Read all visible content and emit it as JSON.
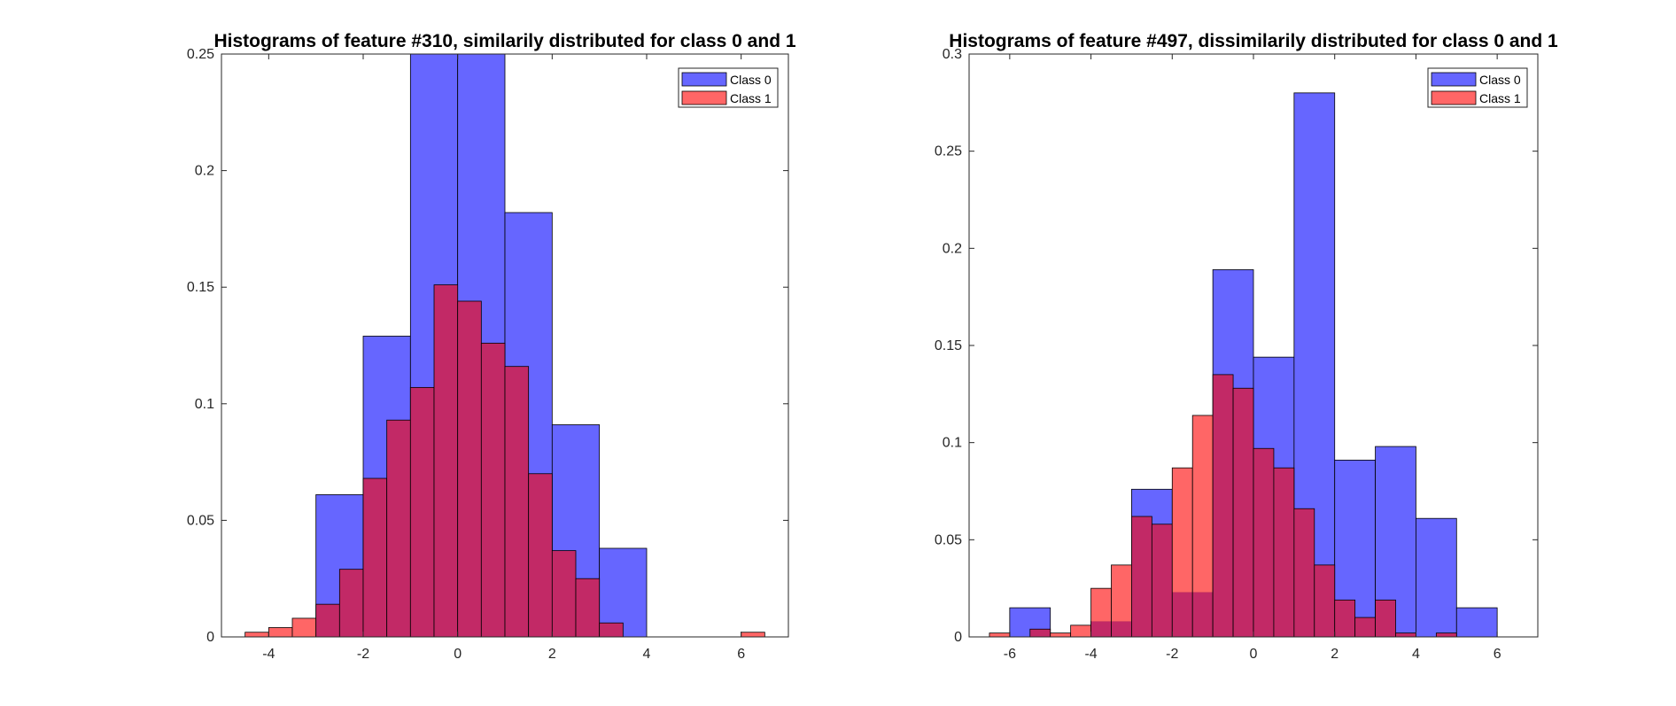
{
  "chart_data": [
    {
      "type": "bar",
      "subtype": "histogram-overlay",
      "title": "Histograms of feature #310, similarily distributed for class 0 and 1",
      "xlabel": "",
      "ylabel": "",
      "xlim": [
        -5,
        7
      ],
      "ylim": [
        0,
        0.25
      ],
      "xticks": [
        -4,
        -2,
        0,
        2,
        4,
        6
      ],
      "yticks": [
        0,
        0.05,
        0.1,
        0.15,
        0.2,
        0.25
      ],
      "ytick_labels": [
        "0",
        "0.05",
        "0.1",
        "0.15",
        "0.2",
        "0.25"
      ],
      "grid": false,
      "legend_position": "top-right",
      "series": [
        {
          "name": "Class 0",
          "color": "#0000ff",
          "bins": [
            {
              "x0": -3.0,
              "x1": -2.0,
              "value": 0.061
            },
            {
              "x0": -2.0,
              "x1": -1.0,
              "value": 0.129
            },
            {
              "x0": -1.0,
              "x1": 0.0,
              "value": 0.25
            },
            {
              "x0": 0.0,
              "x1": 1.0,
              "value": 0.25
            },
            {
              "x0": 1.0,
              "x1": 2.0,
              "value": 0.182
            },
            {
              "x0": 2.0,
              "x1": 3.0,
              "value": 0.091
            },
            {
              "x0": 3.0,
              "x1": 4.0,
              "value": 0.038
            }
          ]
        },
        {
          "name": "Class 1",
          "color": "#ff0000",
          "bins": [
            {
              "x0": -4.5,
              "x1": -4.0,
              "value": 0.002
            },
            {
              "x0": -4.0,
              "x1": -3.5,
              "value": 0.004
            },
            {
              "x0": -3.5,
              "x1": -3.0,
              "value": 0.008
            },
            {
              "x0": -3.0,
              "x1": -2.5,
              "value": 0.014
            },
            {
              "x0": -2.5,
              "x1": -2.0,
              "value": 0.029
            },
            {
              "x0": -2.0,
              "x1": -1.5,
              "value": 0.068
            },
            {
              "x0": -1.5,
              "x1": -1.0,
              "value": 0.093
            },
            {
              "x0": -1.0,
              "x1": -0.5,
              "value": 0.107
            },
            {
              "x0": -0.5,
              "x1": 0.0,
              "value": 0.151
            },
            {
              "x0": 0.0,
              "x1": 0.5,
              "value": 0.144
            },
            {
              "x0": 0.5,
              "x1": 1.0,
              "value": 0.126
            },
            {
              "x0": 1.0,
              "x1": 1.5,
              "value": 0.116
            },
            {
              "x0": 1.5,
              "x1": 2.0,
              "value": 0.07
            },
            {
              "x0": 2.0,
              "x1": 2.5,
              "value": 0.037
            },
            {
              "x0": 2.5,
              "x1": 3.0,
              "value": 0.025
            },
            {
              "x0": 3.0,
              "x1": 3.5,
              "value": 0.006
            },
            {
              "x0": 6.0,
              "x1": 6.5,
              "value": 0.002
            }
          ]
        }
      ]
    },
    {
      "type": "bar",
      "subtype": "histogram-overlay",
      "title": "Histograms of feature #497, dissimilarily distributed for class 0 and 1",
      "xlabel": "",
      "ylabel": "",
      "xlim": [
        -7,
        7
      ],
      "ylim": [
        0,
        0.3
      ],
      "xticks": [
        -6,
        -4,
        -2,
        0,
        2,
        4,
        6
      ],
      "yticks": [
        0,
        0.05,
        0.1,
        0.15,
        0.2,
        0.25,
        0.3
      ],
      "ytick_labels": [
        "0",
        "0.05",
        "0.1",
        "0.15",
        "0.2",
        "0.25",
        "0.3"
      ],
      "grid": false,
      "legend_position": "top-right",
      "series": [
        {
          "name": "Class 0",
          "color": "#0000ff",
          "bins": [
            {
              "x0": -6.0,
              "x1": -5.0,
              "value": 0.015
            },
            {
              "x0": -5.0,
              "x1": -4.0,
              "value": 0.0
            },
            {
              "x0": -4.0,
              "x1": -3.0,
              "value": 0.008
            },
            {
              "x0": -3.0,
              "x1": -2.0,
              "value": 0.076
            },
            {
              "x0": -2.0,
              "x1": -1.0,
              "value": 0.023
            },
            {
              "x0": -1.0,
              "x1": 0.0,
              "value": 0.189
            },
            {
              "x0": 0.0,
              "x1": 1.0,
              "value": 0.144
            },
            {
              "x0": 1.0,
              "x1": 2.0,
              "value": 0.28
            },
            {
              "x0": 2.0,
              "x1": 3.0,
              "value": 0.091
            },
            {
              "x0": 3.0,
              "x1": 4.0,
              "value": 0.098
            },
            {
              "x0": 4.0,
              "x1": 5.0,
              "value": 0.061
            },
            {
              "x0": 5.0,
              "x1": 6.0,
              "value": 0.015
            }
          ]
        },
        {
          "name": "Class 1",
          "color": "#ff0000",
          "bins": [
            {
              "x0": -6.5,
              "x1": -6.0,
              "value": 0.002
            },
            {
              "x0": -6.0,
              "x1": -5.5,
              "value": 0.0
            },
            {
              "x0": -5.5,
              "x1": -5.0,
              "value": 0.004
            },
            {
              "x0": -5.0,
              "x1": -4.5,
              "value": 0.002
            },
            {
              "x0": -4.5,
              "x1": -4.0,
              "value": 0.006
            },
            {
              "x0": -4.0,
              "x1": -3.5,
              "value": 0.025
            },
            {
              "x0": -3.5,
              "x1": -3.0,
              "value": 0.037
            },
            {
              "x0": -3.0,
              "x1": -2.5,
              "value": 0.062
            },
            {
              "x0": -2.5,
              "x1": -2.0,
              "value": 0.058
            },
            {
              "x0": -2.0,
              "x1": -1.5,
              "value": 0.087
            },
            {
              "x0": -1.5,
              "x1": -1.0,
              "value": 0.114
            },
            {
              "x0": -1.0,
              "x1": -0.5,
              "value": 0.135
            },
            {
              "x0": -0.5,
              "x1": 0.0,
              "value": 0.128
            },
            {
              "x0": 0.0,
              "x1": 0.5,
              "value": 0.097
            },
            {
              "x0": 0.5,
              "x1": 1.0,
              "value": 0.087
            },
            {
              "x0": 1.0,
              "x1": 1.5,
              "value": 0.066
            },
            {
              "x0": 1.5,
              "x1": 2.0,
              "value": 0.037
            },
            {
              "x0": 2.0,
              "x1": 2.5,
              "value": 0.019
            },
            {
              "x0": 2.5,
              "x1": 3.0,
              "value": 0.01
            },
            {
              "x0": 3.0,
              "x1": 3.5,
              "value": 0.019
            },
            {
              "x0": 3.5,
              "x1": 4.0,
              "value": 0.002
            },
            {
              "x0": 4.0,
              "x1": 4.5,
              "value": 0.0
            },
            {
              "x0": 4.5,
              "x1": 5.0,
              "value": 0.002
            }
          ]
        }
      ]
    }
  ]
}
